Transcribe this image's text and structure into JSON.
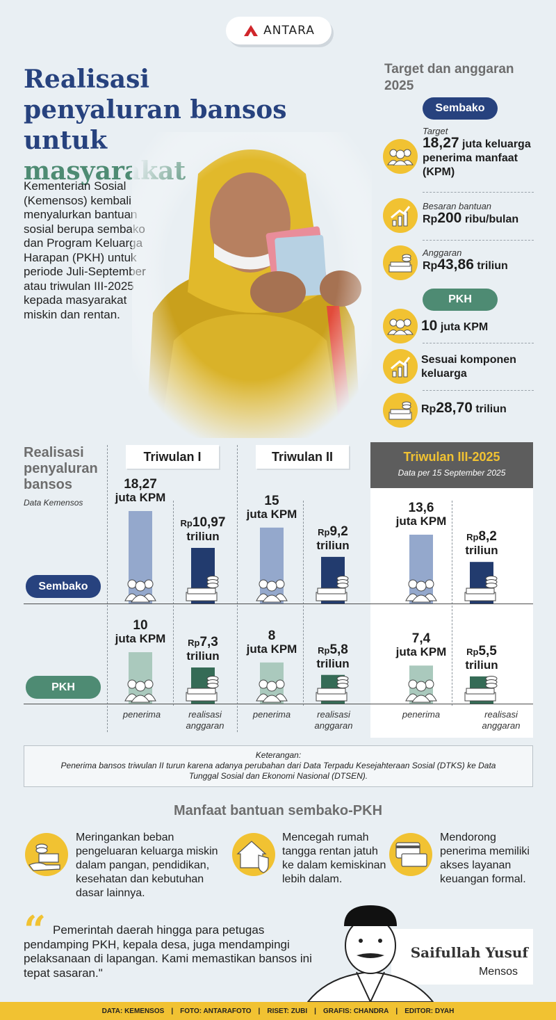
{
  "logo": {
    "text": "ANTARA"
  },
  "title": {
    "line1": "Realisasi penyaluran bansos untuk",
    "line2": "masyarakat"
  },
  "intro": "Kementerian Sosial (Kemensos) kembali menyalurkan bantuan sosial berupa sembako dan Program Keluarga Harapan (PKH) untuk periode Juli-September atau triwulan III-2025 kepada masyarakat miskin dan rentan.",
  "target": {
    "heading": "Target dan anggaran 2025",
    "sembako": {
      "label": "Sembako",
      "target_label": "Target",
      "target_num": "18,27",
      "target_rest": "juta keluarga penerima manfaat (KPM)",
      "besaran_label": "Besaran bantuan",
      "besaran_rp": "Rp",
      "besaran_num": "200",
      "besaran_rest": "ribu/bulan",
      "anggaran_label": "Anggaran",
      "anggaran_rp": "Rp",
      "anggaran_num": "43,86",
      "anggaran_rest": "triliun"
    },
    "pkh": {
      "label": "PKH",
      "target_num": "10",
      "target_rest": "juta KPM",
      "besaran_text": "Sesuai komponen keluarga",
      "anggaran_rp": "Rp",
      "anggaran_num": "28,70",
      "anggaran_rest": "triliun"
    }
  },
  "realisasi": {
    "heading": "Realisasi penyaluran bansos",
    "source": "Data Kemensos",
    "rows": {
      "sembako": "Sembako",
      "pkh": "PKH"
    },
    "captions": {
      "penerima": "penerima",
      "realisasi": "realisasi anggaran"
    }
  },
  "chart_data": {
    "type": "bar",
    "categories": [
      "Triwulan I",
      "Triwulan II",
      "Triwulan III-2025"
    ],
    "q3_subtitle": "Data per 15 September 2025",
    "series": [
      {
        "name": "Sembako",
        "penerima": [
          18.27,
          15,
          13.6
        ],
        "penerima_unit": "juta KPM",
        "penerima_labels": [
          "18,27",
          "15",
          "13,6"
        ],
        "anggaran": [
          10.97,
          9.2,
          8.2
        ],
        "anggaran_unit": "triliun",
        "anggaran_labels": [
          "10,97",
          "9,2",
          "8,2"
        ]
      },
      {
        "name": "PKH",
        "penerima": [
          10,
          8,
          7.4
        ],
        "penerima_unit": "juta KPM",
        "penerima_labels": [
          "10",
          "8",
          "7,4"
        ],
        "anggaran": [
          7.3,
          5.8,
          5.5
        ],
        "anggaran_unit": "triliun",
        "anggaran_labels": [
          "7,3",
          "5,8",
          "5,5"
        ]
      }
    ],
    "currency_prefix": "Rp"
  },
  "note": {
    "label": "Keterangan:",
    "text": "Penerima bansos triwulan II turun karena adanya perubahan dari Data Terpadu Kesejahteraan Sosial (DTKS) ke Data Tunggal Sosial dan Ekonomi Nasional (DTSEN)."
  },
  "manfaat": {
    "heading": "Manfaat bantuan sembako-PKH",
    "items": [
      "Meringankan beban pengeluaran keluarga miskin dalam pangan, pendidikan, kesehatan dan kebutuhan dasar lainnya.",
      "Mencegah rumah tangga rentan jatuh ke dalam kemiskinan lebih dalam.",
      "Mendorong penerima memiliki akses layanan keuangan formal."
    ]
  },
  "quote": {
    "text": "Pemerintah daerah hingga para petugas pendamping PKH, kepala desa, juga mendampingi pelaksanaan di lapangan. Kami  memastikan bansos ini tepat sasaran.\"",
    "name": "Saifullah Yusuf",
    "role": "Mensos"
  },
  "footer": [
    "DATA: KEMENSOS",
    "FOTO: ANTARAFOTO",
    "RISET: ZUBI",
    "GRAFIS: CHANDRA",
    "EDITOR: DYAH"
  ],
  "colors": {
    "navy": "#27427e",
    "green": "#4e8b73",
    "yellow": "#f1c232",
    "bar_light_blue": "#94a8cc",
    "bar_light_green": "#aac9bd"
  }
}
